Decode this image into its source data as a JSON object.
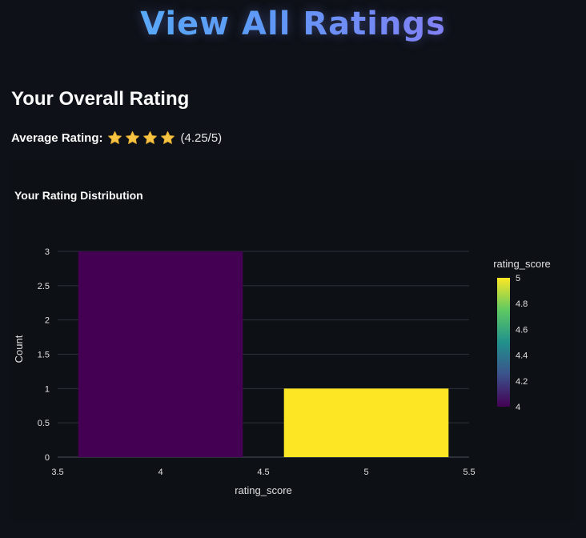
{
  "header": {
    "title": "View All Ratings"
  },
  "overall": {
    "heading": "Your Overall Rating",
    "average_label": "Average Rating:",
    "stars": [
      "star-icon",
      "star-icon",
      "star-icon",
      "star-icon"
    ],
    "average_value": "(4.25/5)",
    "star_color": "#f6c343"
  },
  "chart_data": {
    "type": "bar",
    "title": "Your Rating Distribution",
    "xlabel": "rating_score",
    "ylabel": "Count",
    "x": [
      4,
      5
    ],
    "values": [
      3,
      1
    ],
    "xlim": [
      3.5,
      5.5
    ],
    "ylim": [
      0,
      3
    ],
    "xticks": [
      "3.5",
      "4",
      "4.5",
      "5",
      "5.5"
    ],
    "yticks": [
      "0",
      "0.5",
      "1",
      "1.5",
      "2",
      "2.5",
      "3"
    ],
    "grid": true,
    "colorbar": {
      "title": "rating_score",
      "range": [
        4,
        5
      ],
      "ticks": [
        "4",
        "4.2",
        "4.4",
        "4.6",
        "4.8",
        "5"
      ],
      "colorscale": [
        "#440154",
        "#3b528b",
        "#21918c",
        "#5ec962",
        "#fde725"
      ]
    },
    "bar_colors": [
      "#440154",
      "#fde725"
    ]
  }
}
